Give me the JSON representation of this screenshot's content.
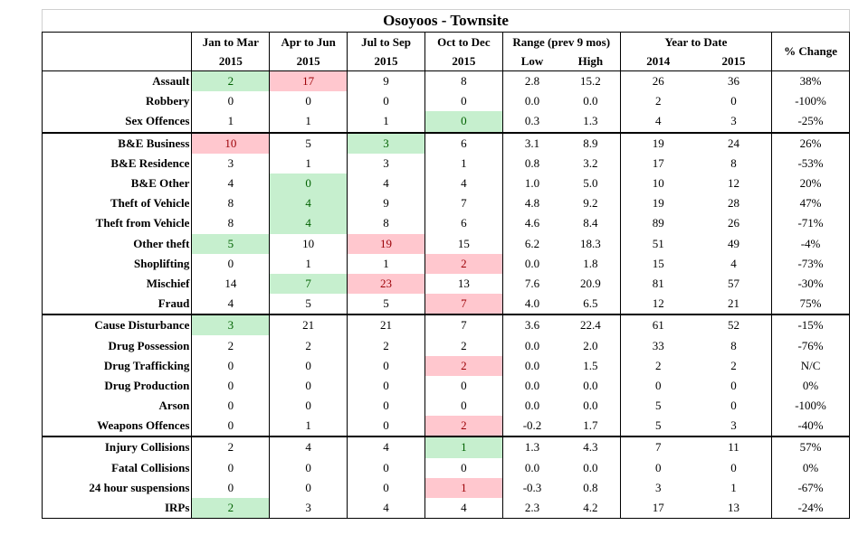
{
  "title": "Osoyoos - Townsite",
  "headers": {
    "q1": "Jan to Mar",
    "q2": "Apr to Jun",
    "q3": "Jul to Sep",
    "q4": "Oct to Dec",
    "year": "2015",
    "range": "Range (prev 9 mos)",
    "low": "Low",
    "high": "High",
    "ytd": "Year to Date",
    "y2014": "2014",
    "y2015": "2015",
    "pct": "% Change"
  },
  "colors": {
    "good": "#c6efce",
    "bad": "#ffc7ce"
  },
  "groups": [
    [
      {
        "label": "Assault",
        "v": [
          "2",
          "17",
          "9",
          "8",
          "2.8",
          "15.2",
          "26",
          "36",
          "38%"
        ],
        "hl": [
          "pos",
          "neg",
          "",
          "",
          "",
          "",
          "",
          "",
          ""
        ]
      },
      {
        "label": "Robbery",
        "v": [
          "0",
          "0",
          "0",
          "0",
          "0.0",
          "0.0",
          "2",
          "0",
          "-100%"
        ],
        "hl": [
          "",
          "",
          "",
          "",
          "",
          "",
          "",
          "",
          ""
        ]
      },
      {
        "label": "Sex Offences",
        "v": [
          "1",
          "1",
          "1",
          "0",
          "0.3",
          "1.3",
          "4",
          "3",
          "-25%"
        ],
        "hl": [
          "",
          "",
          "",
          "pos",
          "",
          "",
          "",
          "",
          ""
        ]
      }
    ],
    [
      {
        "label": "B&E Business",
        "v": [
          "10",
          "5",
          "3",
          "6",
          "3.1",
          "8.9",
          "19",
          "24",
          "26%"
        ],
        "hl": [
          "neg",
          "",
          "pos",
          "",
          "",
          "",
          "",
          "",
          ""
        ]
      },
      {
        "label": "B&E Residence",
        "v": [
          "3",
          "1",
          "3",
          "1",
          "0.8",
          "3.2",
          "17",
          "8",
          "-53%"
        ],
        "hl": [
          "",
          "",
          "",
          "",
          "",
          "",
          "",
          "",
          ""
        ]
      },
      {
        "label": "B&E Other",
        "v": [
          "4",
          "0",
          "4",
          "4",
          "1.0",
          "5.0",
          "10",
          "12",
          "20%"
        ],
        "hl": [
          "",
          "pos",
          "",
          "",
          "",
          "",
          "",
          "",
          ""
        ]
      },
      {
        "label": "Theft of Vehicle",
        "v": [
          "8",
          "4",
          "9",
          "7",
          "4.8",
          "9.2",
          "19",
          "28",
          "47%"
        ],
        "hl": [
          "",
          "pos",
          "",
          "",
          "",
          "",
          "",
          "",
          ""
        ]
      },
      {
        "label": "Theft from Vehicle",
        "v": [
          "8",
          "4",
          "8",
          "6",
          "4.6",
          "8.4",
          "89",
          "26",
          "-71%"
        ],
        "hl": [
          "",
          "pos",
          "",
          "",
          "",
          "",
          "",
          "",
          ""
        ]
      },
      {
        "label": "Other theft",
        "v": [
          "5",
          "10",
          "19",
          "15",
          "6.2",
          "18.3",
          "51",
          "49",
          "-4%"
        ],
        "hl": [
          "pos",
          "",
          "neg",
          "",
          "",
          "",
          "",
          "",
          ""
        ]
      },
      {
        "label": "Shoplifting",
        "v": [
          "0",
          "1",
          "1",
          "2",
          "0.0",
          "1.8",
          "15",
          "4",
          "-73%"
        ],
        "hl": [
          "",
          "",
          "",
          "neg",
          "",
          "",
          "",
          "",
          ""
        ]
      },
      {
        "label": "Mischief",
        "v": [
          "14",
          "7",
          "23",
          "13",
          "7.6",
          "20.9",
          "81",
          "57",
          "-30%"
        ],
        "hl": [
          "",
          "pos",
          "neg",
          "",
          "",
          "",
          "",
          "",
          ""
        ]
      },
      {
        "label": "Fraud",
        "v": [
          "4",
          "5",
          "5",
          "7",
          "4.0",
          "6.5",
          "12",
          "21",
          "75%"
        ],
        "hl": [
          "",
          "",
          "",
          "neg",
          "",
          "",
          "",
          "",
          ""
        ]
      }
    ],
    [
      {
        "label": "Cause Disturbance",
        "v": [
          "3",
          "21",
          "21",
          "7",
          "3.6",
          "22.4",
          "61",
          "52",
          "-15%"
        ],
        "hl": [
          "pos",
          "",
          "",
          "",
          "",
          "",
          "",
          "",
          ""
        ]
      },
      {
        "label": "Drug Possession",
        "v": [
          "2",
          "2",
          "2",
          "2",
          "0.0",
          "2.0",
          "33",
          "8",
          "-76%"
        ],
        "hl": [
          "",
          "",
          "",
          "",
          "",
          "",
          "",
          "",
          ""
        ]
      },
      {
        "label": "Drug Trafficking",
        "v": [
          "0",
          "0",
          "0",
          "2",
          "0.0",
          "1.5",
          "2",
          "2",
          "N/C"
        ],
        "hl": [
          "",
          "",
          "",
          "neg",
          "",
          "",
          "",
          "",
          ""
        ]
      },
      {
        "label": "Drug Production",
        "v": [
          "0",
          "0",
          "0",
          "0",
          "0.0",
          "0.0",
          "0",
          "0",
          "0%"
        ],
        "hl": [
          "",
          "",
          "",
          "",
          "",
          "",
          "",
          "",
          ""
        ]
      },
      {
        "label": "Arson",
        "v": [
          "0",
          "0",
          "0",
          "0",
          "0.0",
          "0.0",
          "5",
          "0",
          "-100%"
        ],
        "hl": [
          "",
          "",
          "",
          "",
          "",
          "",
          "",
          "",
          ""
        ]
      },
      {
        "label": "Weapons Offences",
        "v": [
          "0",
          "1",
          "0",
          "2",
          "-0.2",
          "1.7",
          "5",
          "3",
          "-40%"
        ],
        "hl": [
          "",
          "",
          "",
          "neg",
          "",
          "",
          "",
          "",
          ""
        ]
      }
    ],
    [
      {
        "label": "Injury Collisions",
        "v": [
          "2",
          "4",
          "4",
          "1",
          "1.3",
          "4.3",
          "7",
          "11",
          "57%"
        ],
        "hl": [
          "",
          "",
          "",
          "pos",
          "",
          "",
          "",
          "",
          ""
        ]
      },
      {
        "label": "Fatal Collisions",
        "v": [
          "0",
          "0",
          "0",
          "0",
          "0.0",
          "0.0",
          "0",
          "0",
          "0%"
        ],
        "hl": [
          "",
          "",
          "",
          "",
          "",
          "",
          "",
          "",
          ""
        ]
      },
      {
        "label": "24 hour suspensions",
        "v": [
          "0",
          "0",
          "0",
          "1",
          "-0.3",
          "0.8",
          "3",
          "1",
          "-67%"
        ],
        "hl": [
          "",
          "",
          "",
          "neg",
          "",
          "",
          "",
          "",
          ""
        ]
      },
      {
        "label": "IRPs",
        "v": [
          "2",
          "3",
          "4",
          "4",
          "2.3",
          "4.2",
          "17",
          "13",
          "-24%"
        ],
        "hl": [
          "pos",
          "",
          "",
          "",
          "",
          "",
          "",
          "",
          ""
        ]
      }
    ]
  ]
}
